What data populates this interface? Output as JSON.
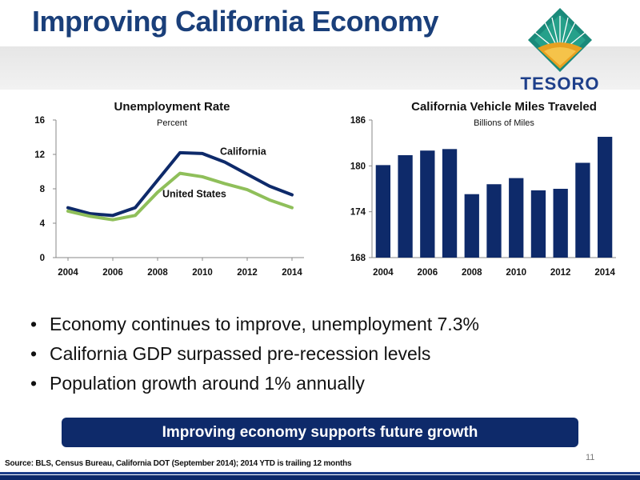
{
  "page": {
    "title": "Improving California Economy",
    "logo_text": "TESORO",
    "page_number": "11",
    "source": "Source: BLS, Census Bureau, California DOT (September 2014); 2014 YTD is trailing 12 months"
  },
  "bullets": [
    "Economy continues to improve, unemployment 7.3%",
    "California GDP surpassed pre-recession levels",
    "Population growth around 1% annually"
  ],
  "banner": {
    "text": "Improving economy supports future growth"
  },
  "colors": {
    "title": "#1a3f7a",
    "navy": "#0e2a6a",
    "green": "#8fbf5a",
    "logo_teal": "#1a8a7a",
    "logo_gold": "#e8a020",
    "grey_band": "#e6e6e6"
  },
  "chart_data": [
    {
      "type": "line",
      "title": "Unemployment Rate",
      "subtitle": "Percent",
      "x": [
        2004,
        2005,
        2006,
        2007,
        2008,
        2009,
        2010,
        2011,
        2012,
        2013,
        2014
      ],
      "x_ticks": [
        "2004",
        "2006",
        "2008",
        "2010",
        "2012",
        "2014"
      ],
      "y_ticks": [
        "0",
        "4",
        "8",
        "12",
        "16"
      ],
      "ylim": [
        0,
        16
      ],
      "xlim": [
        2004,
        2014
      ],
      "grid": false,
      "series": [
        {
          "name": "California",
          "color": "#0e2a6a",
          "values": [
            5.8,
            5.1,
            4.9,
            5.8,
            9.0,
            12.2,
            12.1,
            11.1,
            9.7,
            8.3,
            7.3
          ]
        },
        {
          "name": "United States",
          "color": "#8fbf5a",
          "values": [
            5.4,
            4.8,
            4.4,
            4.9,
            7.6,
            9.8,
            9.4,
            8.6,
            7.9,
            6.7,
            5.8
          ]
        }
      ]
    },
    {
      "type": "bar",
      "title": "California Vehicle Miles Traveled",
      "subtitle": "Billions of Miles",
      "categories": [
        2004,
        2005,
        2006,
        2007,
        2008,
        2009,
        2010,
        2011,
        2012,
        2013,
        2014
      ],
      "x_ticks": [
        "2004",
        "2006",
        "2008",
        "2010",
        "2012",
        "2014"
      ],
      "y_ticks": [
        "168",
        "174",
        "180",
        "186"
      ],
      "ylim": [
        168,
        186
      ],
      "grid": false,
      "color": "#0e2a6a",
      "values": [
        180.1,
        181.4,
        182.0,
        182.2,
        176.3,
        177.6,
        178.4,
        176.8,
        177.0,
        180.4,
        183.8
      ]
    }
  ]
}
